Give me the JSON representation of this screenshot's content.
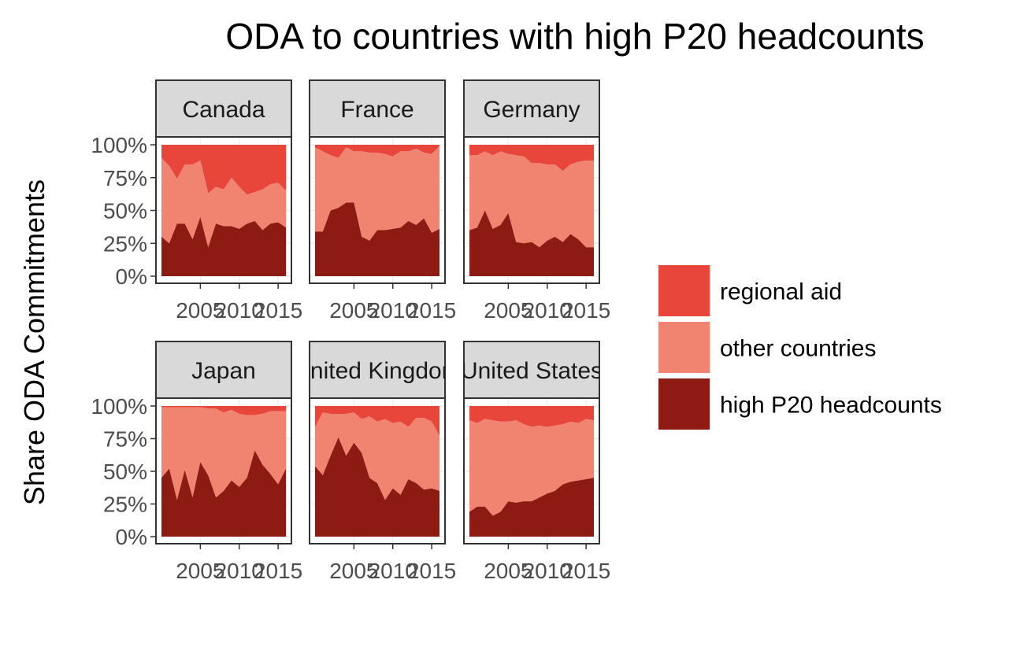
{
  "chart_data": {
    "type": "area",
    "stacked": true,
    "title": "ODA to countries with high P20 headcounts",
    "ylabel": "Share ODA Commitments",
    "xlabel": "",
    "ylim": [
      0,
      1
    ],
    "xlim": [
      2000,
      2016
    ],
    "x_ticks": [
      "2005",
      "2010",
      "2015"
    ],
    "y_ticks": [
      "0%",
      "25%",
      "50%",
      "75%",
      "100%"
    ],
    "legend_position": "right",
    "legend": [
      {
        "name": "regional aid",
        "color": "#e8453b"
      },
      {
        "name": "other countries",
        "color": "#f08470"
      },
      {
        "name": "high P20 headcounts",
        "color": "#8e1a14"
      }
    ],
    "x": [
      2000,
      2001,
      2002,
      2003,
      2004,
      2005,
      2006,
      2007,
      2008,
      2009,
      2010,
      2011,
      2012,
      2013,
      2014,
      2015,
      2016
    ],
    "panels": [
      {
        "label": "Canada",
        "high_p20": [
          0.3,
          0.25,
          0.4,
          0.4,
          0.28,
          0.45,
          0.22,
          0.4,
          0.38,
          0.38,
          0.36,
          0.4,
          0.42,
          0.35,
          0.4,
          0.41,
          0.37
        ],
        "other": [
          0.9,
          0.84,
          0.74,
          0.85,
          0.85,
          0.88,
          0.63,
          0.68,
          0.66,
          0.75,
          0.68,
          0.62,
          0.64,
          0.66,
          0.7,
          0.71,
          0.65
        ]
      },
      {
        "label": "France",
        "high_p20": [
          0.34,
          0.34,
          0.5,
          0.52,
          0.56,
          0.56,
          0.3,
          0.27,
          0.35,
          0.35,
          0.36,
          0.37,
          0.42,
          0.39,
          0.44,
          0.33,
          0.36
        ],
        "other": [
          0.98,
          0.95,
          0.92,
          0.9,
          0.98,
          0.95,
          0.95,
          0.94,
          0.94,
          0.93,
          0.91,
          0.95,
          0.95,
          0.97,
          0.94,
          0.93,
          0.99
        ]
      },
      {
        "label": "Germany",
        "high_p20": [
          0.35,
          0.37,
          0.5,
          0.36,
          0.39,
          0.48,
          0.26,
          0.25,
          0.26,
          0.22,
          0.27,
          0.3,
          0.26,
          0.32,
          0.28,
          0.22,
          0.22
        ],
        "other": [
          0.92,
          0.92,
          0.95,
          0.92,
          0.95,
          0.93,
          0.92,
          0.91,
          0.86,
          0.86,
          0.85,
          0.85,
          0.8,
          0.85,
          0.87,
          0.88,
          0.88
        ]
      },
      {
        "label": "Japan",
        "high_p20": [
          0.45,
          0.52,
          0.28,
          0.51,
          0.3,
          0.57,
          0.47,
          0.3,
          0.35,
          0.43,
          0.38,
          0.45,
          0.66,
          0.55,
          0.48,
          0.4,
          0.52
        ],
        "other": [
          0.99,
          0.99,
          0.99,
          0.99,
          0.99,
          0.99,
          0.98,
          0.98,
          0.95,
          0.97,
          0.94,
          0.93,
          0.93,
          0.94,
          0.96,
          0.96,
          0.96
        ]
      },
      {
        "label": "United Kingdom",
        "high_p20": [
          0.54,
          0.47,
          0.62,
          0.76,
          0.62,
          0.72,
          0.64,
          0.45,
          0.41,
          0.28,
          0.37,
          0.32,
          0.44,
          0.41,
          0.36,
          0.37,
          0.35
        ],
        "other": [
          0.84,
          0.95,
          0.94,
          0.94,
          0.94,
          0.95,
          0.9,
          0.92,
          0.88,
          0.9,
          0.87,
          0.88,
          0.84,
          0.91,
          0.91,
          0.88,
          0.77
        ]
      },
      {
        "label": "United States",
        "high_p20": [
          0.19,
          0.23,
          0.23,
          0.16,
          0.19,
          0.27,
          0.26,
          0.27,
          0.27,
          0.3,
          0.33,
          0.35,
          0.4,
          0.42,
          0.43,
          0.44,
          0.45
        ],
        "other": [
          0.89,
          0.87,
          0.9,
          0.89,
          0.88,
          0.88,
          0.89,
          0.86,
          0.84,
          0.85,
          0.84,
          0.85,
          0.86,
          0.88,
          0.87,
          0.9,
          0.89
        ]
      }
    ]
  }
}
